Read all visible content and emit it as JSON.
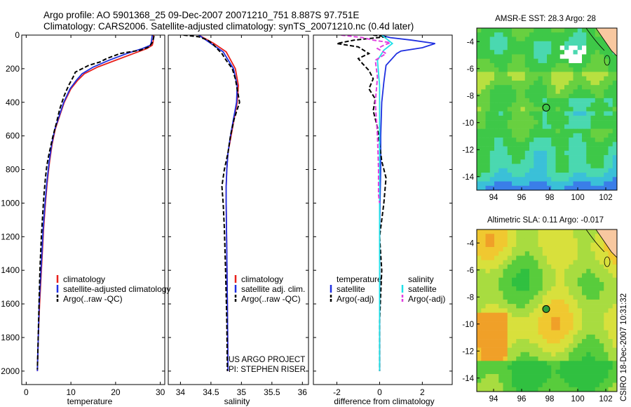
{
  "header": {
    "line1": "Argo profile: AO 5901368_25 09-Dec-2007 20071210_751 8.887S 97.751E",
    "line2": "Climatology: CARS2006. Satellite-adjusted climatology: synTS_20071210.nc (0.4d later)"
  },
  "credit": {
    "project": "US ARGO PROJECT",
    "pi": "PI: STEPHEN RISER"
  },
  "stamp": "CSIRO 18-Dec-2007 10:31:32",
  "colors": {
    "clim": "#e8201c",
    "sat": "#1f2fe0",
    "argo": "#000000",
    "sal_sat": "#20e0e8",
    "sal_argo": "#e040e0"
  },
  "chart_data": [
    {
      "id": "temperature",
      "type": "line",
      "xlabel": "temperature",
      "ylabel": "",
      "xlim": [
        -1,
        31
      ],
      "ylim": [
        2080,
        0
      ],
      "xticks": [
        0,
        10,
        20,
        30
      ],
      "yticks": [
        0,
        200,
        400,
        600,
        800,
        1000,
        1200,
        1400,
        1600,
        1800,
        2000
      ],
      "legend": [
        "climatology",
        "satellite-adjusted climatology",
        "Argo(..raw -QC)"
      ],
      "legend_location": "lower-center",
      "series": [
        {
          "name": "climatology",
          "color": "clim",
          "dash": "",
          "x": [
            28.5,
            28.4,
            28.2,
            27.0,
            24.0,
            20.0,
            16.0,
            13.0,
            11.5,
            10.0,
            8.5,
            7.5,
            6.5,
            5.8,
            5.2,
            4.7,
            4.3,
            3.9,
            3.6,
            3.3,
            3.0,
            2.7,
            2.5
          ],
          "y": [
            0,
            40,
            60,
            80,
            110,
            150,
            190,
            230,
            270,
            320,
            400,
            480,
            560,
            650,
            760,
            880,
            1000,
            1150,
            1300,
            1450,
            1600,
            1800,
            2000
          ]
        },
        {
          "name": "satellite-adjusted",
          "color": "sat",
          "dash": "",
          "x": [
            28.2,
            28.0,
            27.8,
            26.0,
            22.5,
            18.5,
            15.0,
            12.5,
            11.2,
            9.8,
            8.4,
            7.4,
            6.4,
            5.7,
            5.1,
            4.6,
            4.2,
            3.8,
            3.5,
            3.2,
            2.9,
            2.7,
            2.5
          ],
          "y": [
            0,
            40,
            60,
            80,
            110,
            150,
            190,
            230,
            270,
            320,
            400,
            480,
            560,
            650,
            760,
            880,
            1000,
            1150,
            1300,
            1450,
            1600,
            1800,
            2000
          ]
        },
        {
          "name": "Argo",
          "color": "argo",
          "dash": "6 3",
          "x": [
            28.6,
            28.3,
            27.5,
            25.5,
            21.0,
            18.0,
            16.5,
            14.0,
            12.5,
            11.0,
            10.5,
            9.5,
            8.5,
            7.5,
            6.8,
            6.0,
            5.5,
            5.0,
            4.6,
            4.3,
            4.0,
            3.7,
            3.4,
            3.1,
            2.9,
            2.7,
            2.5
          ],
          "y": [
            5,
            40,
            70,
            90,
            110,
            140,
            160,
            180,
            200,
            220,
            250,
            300,
            360,
            440,
            520,
            600,
            660,
            720,
            780,
            850,
            940,
            1060,
            1200,
            1380,
            1560,
            1780,
            1990
          ]
        }
      ]
    },
    {
      "id": "salinity",
      "type": "line",
      "xlabel": "salinity",
      "ylabel": "",
      "xlim": [
        33.8,
        36.1
      ],
      "ylim": [
        2080,
        0
      ],
      "xticks": [
        34,
        34.5,
        35,
        35.5,
        36
      ],
      "yticks": [
        0,
        200,
        400,
        600,
        800,
        1000,
        1200,
        1400,
        1600,
        1800,
        2000
      ],
      "legend": [
        "climatology",
        "satellite adj. clim.",
        "Argo(..raw -QC)"
      ],
      "legend_location": "lower-right",
      "series": [
        {
          "name": "climatology",
          "color": "clim",
          "dash": "",
          "x": [
            34.3,
            34.55,
            34.75,
            34.9,
            34.95,
            34.93,
            34.88,
            34.83,
            34.78,
            34.76,
            34.75,
            34.75,
            34.76,
            34.77,
            34.78
          ],
          "y": [
            0,
            50,
            100,
            200,
            300,
            400,
            500,
            600,
            700,
            800,
            900,
            1000,
            1300,
            1600,
            2000
          ]
        },
        {
          "name": "satellite adj.",
          "color": "sat",
          "dash": "",
          "x": [
            34.3,
            34.5,
            34.7,
            34.87,
            34.93,
            34.92,
            34.87,
            34.82,
            34.78,
            34.76,
            34.75,
            34.75,
            34.76,
            34.77,
            34.78
          ],
          "y": [
            0,
            50,
            100,
            200,
            300,
            400,
            500,
            600,
            700,
            800,
            900,
            1000,
            1300,
            1600,
            2000
          ]
        },
        {
          "name": "Argo",
          "color": "argo",
          "dash": "6 3",
          "x": [
            34.05,
            34.3,
            34.45,
            34.55,
            34.6,
            34.68,
            34.75,
            34.85,
            34.9,
            34.97,
            34.88,
            34.82,
            34.78,
            34.72,
            34.68,
            34.7,
            34.72,
            34.74,
            34.76,
            34.77
          ],
          "y": [
            0,
            10,
            30,
            60,
            80,
            110,
            150,
            200,
            260,
            400,
            500,
            600,
            700,
            800,
            900,
            1000,
            1150,
            1400,
            1700,
            2000
          ]
        }
      ]
    },
    {
      "id": "difference",
      "type": "line",
      "xlabel": "difference from climatology",
      "ylabel": "",
      "xlim": [
        -3.1,
        3.4
      ],
      "ylim": [
        2080,
        0
      ],
      "xticks": [
        -2,
        0,
        2
      ],
      "yticks": [
        0,
        200,
        400,
        600,
        800,
        1000,
        1200,
        1400,
        1600,
        1800,
        2000
      ],
      "legend": [
        "temperature",
        "satellite",
        "Argo(-adj)",
        "salinity",
        "satellite",
        "Argo(-adj)"
      ],
      "legend_location": "lower-center",
      "series": [
        {
          "name": "temperature satellite",
          "color": "sat",
          "dash": "",
          "x": [
            0.0,
            0.5,
            1.5,
            2.6,
            2.0,
            1.0,
            0.8,
            0.3,
            0.2,
            0.1,
            0.05,
            0.05,
            0.02,
            0.0,
            0.0,
            0.0,
            0.0
          ],
          "y": [
            0,
            15,
            30,
            50,
            75,
            95,
            110,
            180,
            280,
            400,
            600,
            800,
            1000,
            1200,
            1500,
            1800,
            2000
          ]
        },
        {
          "name": "temperature Argo",
          "color": "argo",
          "dash": "6 3",
          "x": [
            -0.3,
            0.3,
            -1.2,
            -2.0,
            -1.0,
            -0.5,
            -1.0,
            -0.8,
            -0.5,
            -0.3,
            -0.5,
            -0.2,
            -0.3,
            -0.1,
            0.0,
            0.1,
            0.3,
            0.2,
            0.1,
            0.0,
            0.1,
            0.0,
            0.0
          ],
          "y": [
            0,
            10,
            30,
            50,
            70,
            110,
            140,
            170,
            210,
            260,
            320,
            380,
            450,
            550,
            650,
            750,
            850,
            1000,
            1100,
            1200,
            1400,
            1700,
            2000
          ]
        },
        {
          "name": "salinity satellite",
          "color": "sal_sat",
          "dash": "",
          "x": [
            0.1,
            0.3,
            0.6,
            0.2,
            -0.1,
            0.0,
            0.0,
            0.0,
            0.0,
            0.0
          ],
          "y": [
            0,
            20,
            50,
            90,
            150,
            300,
            600,
            1000,
            1500,
            2000
          ]
        },
        {
          "name": "salinity Argo",
          "color": "sal_argo",
          "dash": "6 3",
          "x": [
            -1.8,
            -0.8,
            -0.3,
            0.5,
            0.2,
            -0.1,
            0.3,
            -0.2,
            -0.1,
            -0.2,
            -0.1,
            -0.05,
            -0.05,
            0.0
          ],
          "y": [
            0,
            15,
            30,
            45,
            60,
            80,
            110,
            150,
            250,
            400,
            600,
            800,
            950,
            1000
          ]
        }
      ]
    },
    {
      "id": "sst-map",
      "type": "heatmap",
      "title": "AMSR-E SST: 28.3  Argo: 28",
      "xlim": [
        92.8,
        102.8
      ],
      "ylim": [
        -15,
        -3
      ],
      "xticks": [
        94,
        96,
        98,
        100,
        102
      ],
      "yticks": [
        -4,
        -6,
        -8,
        -10,
        -12,
        -14
      ],
      "marker": {
        "lon": 97.75,
        "lat": -8.89
      }
    },
    {
      "id": "sla-map",
      "type": "heatmap",
      "title": "Altimetric SLA: 0.11  Argo: -0.017",
      "xlim": [
        92.8,
        102.8
      ],
      "ylim": [
        -15,
        -3
      ],
      "xticks": [
        94,
        96,
        98,
        100,
        102
      ],
      "yticks": [
        -4,
        -6,
        -8,
        -10,
        -12,
        -14
      ],
      "marker": {
        "lon": 97.75,
        "lat": -8.89
      }
    }
  ]
}
